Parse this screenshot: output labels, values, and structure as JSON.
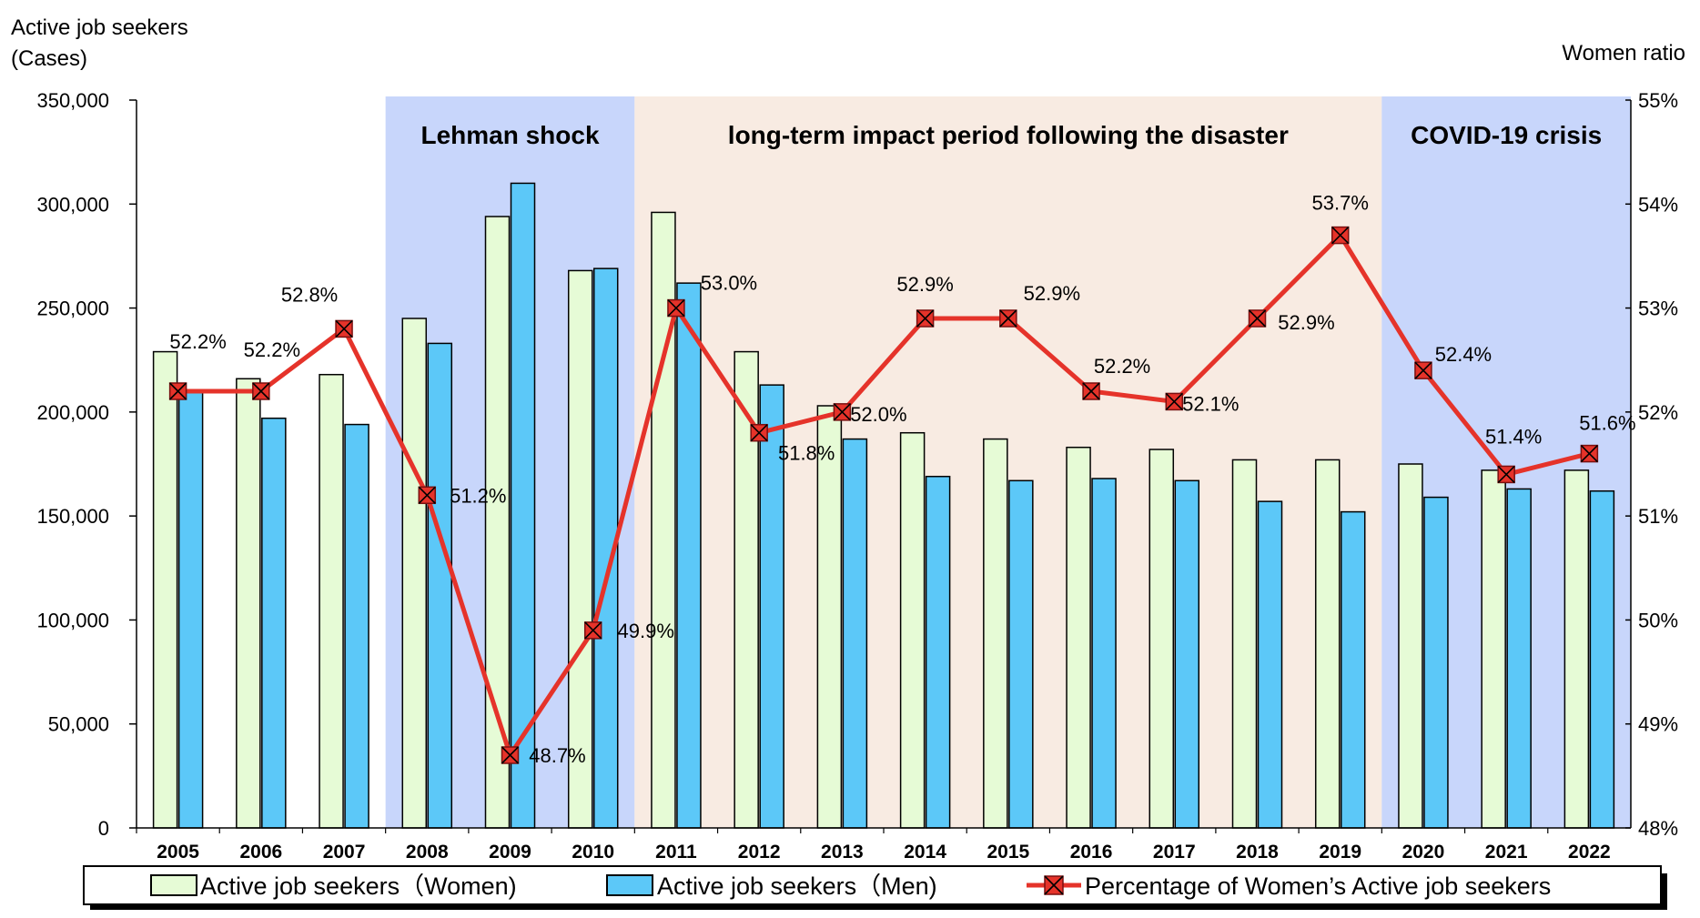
{
  "chart_data": {
    "type": "bar",
    "title": "",
    "y_left": {
      "label_line1": "Active job seekers",
      "label_line2": "(Cases)",
      "range": [
        0,
        350000
      ],
      "ticks": [
        "0",
        "50,000",
        "100,000",
        "150,000",
        "200,000",
        "250,000",
        "300,000",
        "350,000"
      ]
    },
    "y_right": {
      "label": "Women ratio",
      "range": [
        48,
        55
      ],
      "ticks": [
        "48%",
        "49%",
        "50%",
        "51%",
        "52%",
        "53%",
        "54%",
        "55%"
      ]
    },
    "categories": [
      "2005",
      "2006",
      "2007",
      "2008",
      "2009",
      "2010",
      "2011",
      "2012",
      "2013",
      "2014",
      "2015",
      "2016",
      "2017",
      "2018",
      "2019",
      "2020",
      "2021",
      "2022"
    ],
    "series": [
      {
        "name": "Active job seekers（Women)",
        "kind": "bar",
        "axis": "left",
        "color": "#e6fbd6",
        "values": [
          229000,
          216000,
          218000,
          245000,
          294000,
          268000,
          296000,
          229000,
          203000,
          190000,
          187000,
          183000,
          182000,
          177000,
          177000,
          175000,
          172000,
          172000
        ]
      },
      {
        "name": "Active job seekers（Men)",
        "kind": "bar",
        "axis": "left",
        "color": "#5cc8f8",
        "values": [
          210000,
          197000,
          194000,
          233000,
          310000,
          269000,
          262000,
          213000,
          187000,
          169000,
          167000,
          168000,
          167000,
          157000,
          152000,
          159000,
          163000,
          162000
        ]
      },
      {
        "name": "Percentage of Women’s Active job seekers",
        "kind": "line",
        "axis": "right",
        "color": "#e5332a",
        "values": [
          52.2,
          52.2,
          52.8,
          51.2,
          48.7,
          49.9,
          53.0,
          51.8,
          52.0,
          52.9,
          52.9,
          52.2,
          52.1,
          52.9,
          53.7,
          52.4,
          51.4,
          51.6
        ],
        "labels": [
          "52.2%",
          "52.2%",
          "52.8%",
          "51.2%",
          "48.7%",
          "49.9%",
          "53.0%",
          "51.8%",
          "52.0%",
          "52.9%",
          "52.9%",
          "52.2%",
          "52.1%",
          "52.9%",
          "53.7%",
          "52.4%",
          "51.4%",
          "51.6%"
        ]
      }
    ],
    "periods": [
      {
        "label": "Lehman shock",
        "from": "2008",
        "to": "2010",
        "color": "#c8d6fb"
      },
      {
        "label": "long-term impact period following the disaster",
        "from": "2011",
        "to": "2019",
        "color": "#f8ebe2"
      },
      {
        "label": "COVID-19 crisis",
        "from": "2020",
        "to": "2022",
        "color": "#c8d6fb"
      }
    ],
    "grid": false,
    "legend_position": "bottom"
  }
}
